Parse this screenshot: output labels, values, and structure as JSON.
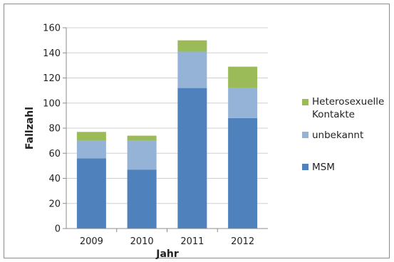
{
  "chart_data": {
    "type": "bar",
    "stacked": true,
    "title": "",
    "xlabel": "Jahr",
    "ylabel": "Fallzahl",
    "categories": [
      "2009",
      "2010",
      "2011",
      "2012"
    ],
    "series": [
      {
        "name": "MSM",
        "color": "#4f81bd",
        "values": [
          56,
          47,
          112,
          88
        ]
      },
      {
        "name": "unbekannt",
        "color": "#95b3d7",
        "values": [
          14,
          23,
          29,
          24
        ]
      },
      {
        "name": "Heterosexuelle Kontakte",
        "color": "#9bbb59",
        "values": [
          7,
          4,
          9,
          17
        ]
      }
    ],
    "legend_series_order": [
      2,
      1,
      0
    ],
    "ylim": [
      0,
      160
    ],
    "yticks": [
      "0",
      "20",
      "40",
      "60",
      "80",
      "100",
      "120",
      "140",
      "160"
    ],
    "grid": true,
    "legend_position": "right"
  }
}
